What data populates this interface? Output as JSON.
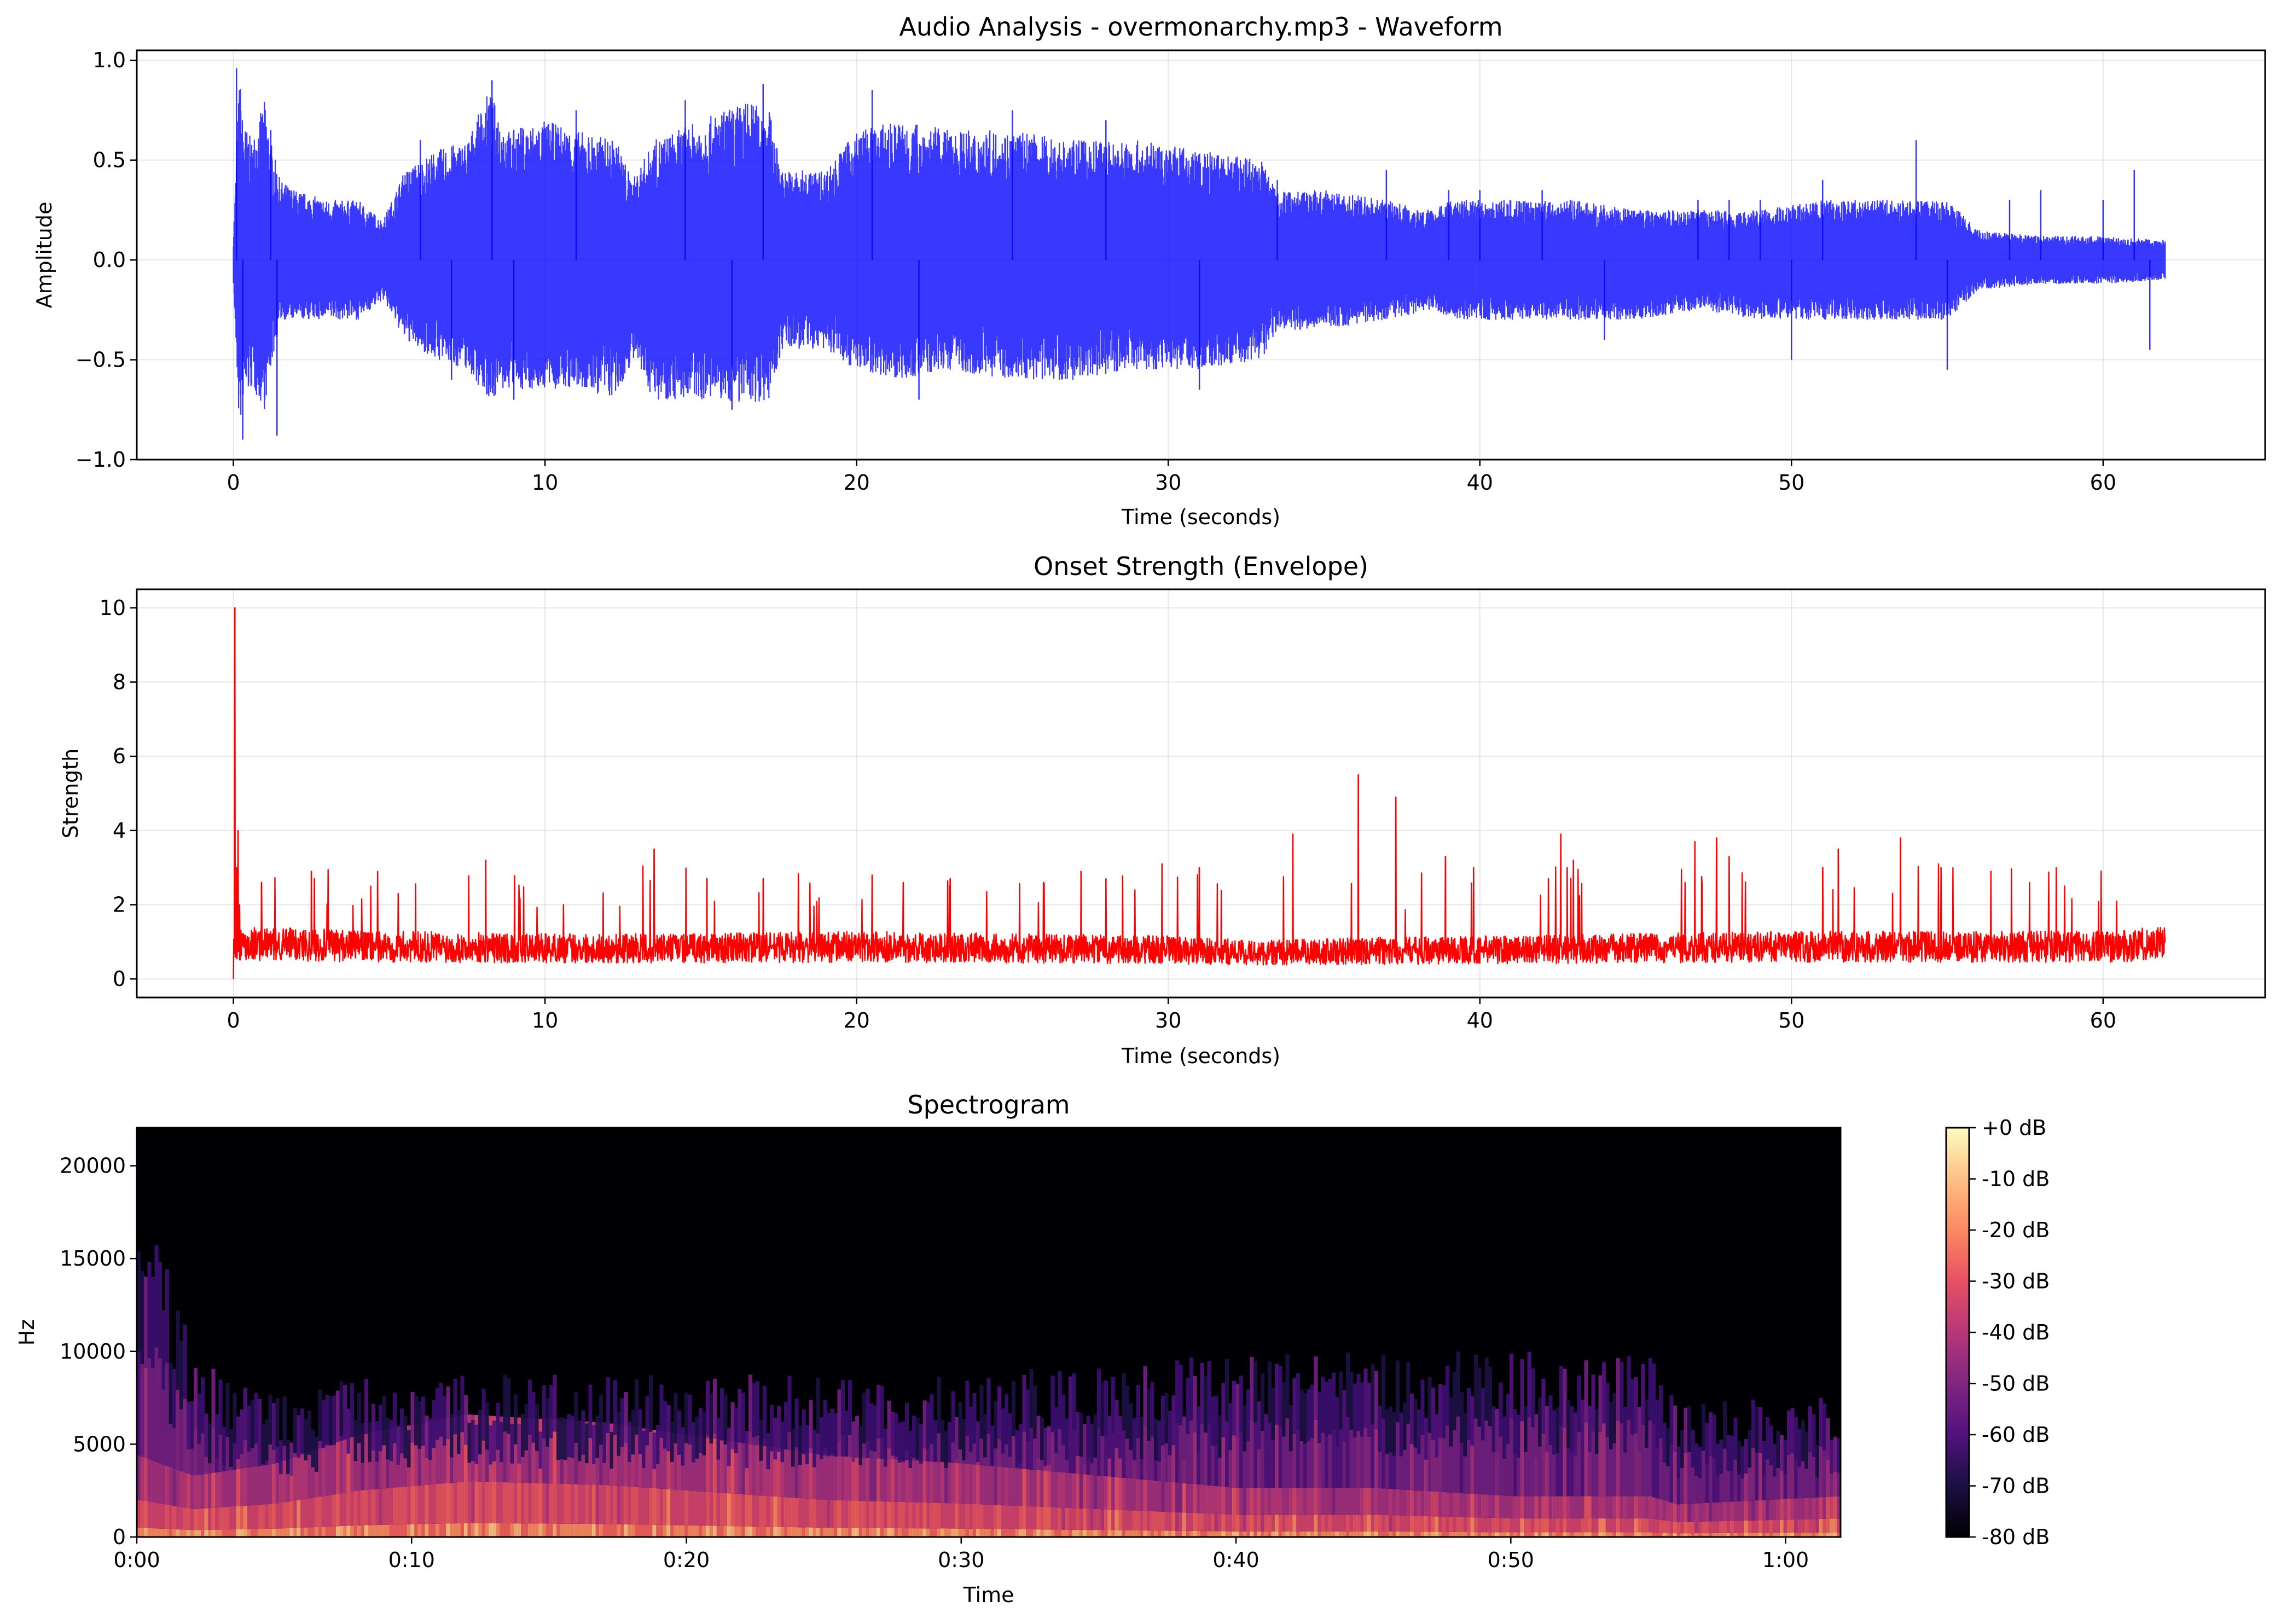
{
  "chart_data": [
    {
      "type": "line",
      "title": "Audio Analysis - overmonarchy.mp3 - Waveform",
      "xlabel": "Time (seconds)",
      "ylabel": "Amplitude",
      "xlim": [
        -3.1,
        65.2
      ],
      "ylim": [
        -1.0,
        1.05
      ],
      "xticks": [
        0,
        10,
        20,
        30,
        40,
        50,
        60
      ],
      "yticks": [
        1.0,
        0.5,
        0.0,
        -0.5,
        -1.0
      ],
      "ytick_labels": [
        "1.0",
        "0.5",
        "0.0",
        "−0.5",
        "−1.0"
      ],
      "grid": true,
      "color": "#0000ff",
      "series": [
        {
          "envelope_x": [
            0,
            0.2,
            0.3,
            0.6,
            1.0,
            1.2,
            1.5,
            2.0,
            3.0,
            4.0,
            4.8,
            5.5,
            6.5,
            7.5,
            8.2,
            8.8,
            10.0,
            11.0,
            12.3,
            12.8,
            13.5,
            15.0,
            16.5,
            17.2,
            17.6,
            19.0,
            20.0,
            21.5,
            23.0,
            25.0,
            27.0,
            29.0,
            31.0,
            33.0,
            33.5,
            35.0,
            37.0,
            38.5,
            39.0,
            41.0,
            43.0,
            45.0,
            47.0,
            49.0,
            51.0,
            53.0,
            55.0,
            56.0,
            58.0,
            60.0,
            62.0
          ],
          "envelope_pos": [
            0.12,
            0.95,
            0.7,
            0.6,
            0.8,
            0.6,
            0.4,
            0.35,
            0.3,
            0.3,
            0.2,
            0.45,
            0.55,
            0.6,
            0.85,
            0.65,
            0.7,
            0.65,
            0.6,
            0.4,
            0.6,
            0.7,
            0.8,
            0.75,
            0.45,
            0.45,
            0.65,
            0.7,
            0.65,
            0.65,
            0.6,
            0.6,
            0.55,
            0.5,
            0.35,
            0.35,
            0.3,
            0.25,
            0.3,
            0.3,
            0.3,
            0.25,
            0.25,
            0.25,
            0.3,
            0.3,
            0.3,
            0.15,
            0.12,
            0.12,
            0.1
          ],
          "envelope_neg": [
            -0.12,
            -0.9,
            -0.7,
            -0.65,
            -0.75,
            -0.55,
            -0.3,
            -0.3,
            -0.3,
            -0.3,
            -0.2,
            -0.4,
            -0.5,
            -0.55,
            -0.7,
            -0.65,
            -0.65,
            -0.65,
            -0.7,
            -0.5,
            -0.7,
            -0.7,
            -0.72,
            -0.7,
            -0.45,
            -0.45,
            -0.55,
            -0.6,
            -0.55,
            -0.6,
            -0.6,
            -0.55,
            -0.55,
            -0.5,
            -0.35,
            -0.35,
            -0.3,
            -0.25,
            -0.3,
            -0.3,
            -0.3,
            -0.3,
            -0.25,
            -0.3,
            -0.3,
            -0.3,
            -0.3,
            -0.15,
            -0.12,
            -0.12,
            -0.1
          ],
          "spike_x": [
            0.1,
            0.3,
            1.2,
            1.4,
            6.0,
            7.0,
            8.3,
            9.0,
            11.0,
            14.5,
            16.0,
            17.0,
            20.5,
            22.0,
            25.0,
            28.0,
            31.0,
            33.5,
            37.0,
            39.0,
            40.0,
            42.0,
            44.0,
            47.0,
            48.0,
            49.0,
            50.0,
            51.0,
            54.0,
            55.0,
            57.0,
            58.0,
            60.0,
            61.0,
            61.5
          ],
          "spike_y": [
            0.96,
            -0.9,
            0.65,
            -0.88,
            0.6,
            -0.6,
            0.9,
            -0.7,
            0.75,
            0.8,
            -0.75,
            0.88,
            0.85,
            -0.7,
            0.75,
            0.7,
            -0.65,
            0.4,
            0.45,
            0.35,
            0.35,
            0.35,
            -0.4,
            0.3,
            0.3,
            0.3,
            -0.5,
            0.4,
            0.6,
            -0.55,
            0.3,
            0.35,
            0.3,
            0.45,
            -0.45
          ]
        }
      ]
    },
    {
      "type": "line",
      "title": "Onset Strength (Envelope)",
      "xlabel": "Time (seconds)",
      "ylabel": "Strength",
      "xlim": [
        -3.1,
        65.2
      ],
      "ylim": [
        -0.5,
        10.5
      ],
      "xticks": [
        0,
        10,
        20,
        30,
        40,
        50,
        60
      ],
      "yticks": [
        0,
        2,
        4,
        6,
        8,
        10
      ],
      "grid": true,
      "color": "#ff0000",
      "series": [
        {
          "baseline_x": [
            0.3,
            5.0,
            10.0,
            15.0,
            20.0,
            25.0,
            30.0,
            33.0,
            35.0,
            40.0,
            45.0,
            50.0,
            55.0,
            60.0,
            62.0
          ],
          "baseline_y": [
            1.1,
            1.0,
            0.95,
            0.95,
            1.0,
            0.95,
            0.9,
            0.8,
            0.85,
            0.9,
            0.95,
            1.0,
            1.0,
            1.0,
            1.1
          ],
          "peaks_x": [
            0.0,
            0.05,
            0.1,
            0.15,
            0.2,
            0.9,
            2.5,
            2.6,
            8.1,
            13.5,
            15.2,
            17.0,
            20.5,
            21.5,
            23.0,
            26.0,
            27.2,
            28.0,
            29.8,
            31.0,
            34.0,
            36.1,
            37.3,
            38.9,
            39.8,
            42.6,
            42.8,
            43.0,
            46.9,
            47.6,
            48.0,
            51.0,
            51.5,
            53.5,
            54.8,
            56.4,
            58.5
          ],
          "peaks_y": [
            0.0,
            10.0,
            3.0,
            4.0,
            2.0,
            2.6,
            2.9,
            2.7,
            3.2,
            3.5,
            2.7,
            2.7,
            2.8,
            2.6,
            2.7,
            2.6,
            2.9,
            2.7,
            3.1,
            3.0,
            3.9,
            5.5,
            4.9,
            3.3,
            3.0,
            3.9,
            3.0,
            3.2,
            3.7,
            3.8,
            3.3,
            3.0,
            3.5,
            3.8,
            3.0,
            2.9,
            3.0
          ]
        }
      ]
    },
    {
      "type": "heatmap",
      "title": "Spectrogram",
      "xlabel": "Time",
      "ylabel": "Hz",
      "xlim": [
        0,
        62
      ],
      "ylim": [
        0,
        22050
      ],
      "xtick_values": [
        0,
        10,
        20,
        30,
        40,
        50,
        60
      ],
      "xtick_labels": [
        "0:00",
        "0:10",
        "0:20",
        "0:30",
        "0:40",
        "0:50",
        "1:00"
      ],
      "yticks": [
        0,
        5000,
        10000,
        15000,
        20000
      ],
      "colormap": "magma",
      "colorbar": {
        "min_db": -80,
        "max_db": 0,
        "labels": [
          "+0 dB",
          "-10 dB",
          "-20 dB",
          "-30 dB",
          "-40 dB",
          "-50 dB",
          "-60 dB",
          "-70 dB",
          "-80 dB"
        ]
      },
      "energy_profile": {
        "x": [
          0,
          2,
          5,
          8,
          12,
          17,
          20,
          25,
          30,
          35,
          40,
          45,
          50,
          55,
          56,
          62
        ],
        "upper_hz": [
          16000,
          8000,
          6000,
          7000,
          7000,
          7000,
          7000,
          7000,
          7000,
          7500,
          8000,
          8000,
          8000,
          8000,
          6000,
          6000
        ],
        "hot_hz": [
          2000,
          1500,
          1800,
          2500,
          3000,
          2800,
          2500,
          2000,
          1800,
          1500,
          1200,
          1200,
          1000,
          1000,
          800,
          1000
        ]
      }
    }
  ]
}
